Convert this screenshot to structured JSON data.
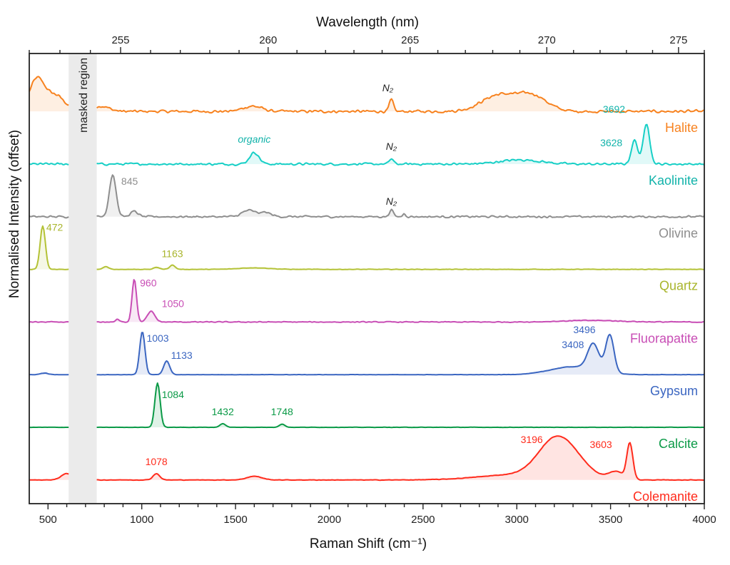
{
  "chart_data": {
    "type": "line",
    "xlabel": "Raman Shift (cm⁻¹)",
    "ylabel": "Normalised Intensity (offset)",
    "top_xlabel": "Wavelength (nm)",
    "xlim": [
      400,
      4000
    ],
    "xticks": [
      500,
      1000,
      1500,
      2000,
      2500,
      3000,
      3500,
      4000
    ],
    "x_minor_step": 100,
    "top_xlim": [
      252,
      276
    ],
    "top_xticks": [
      255,
      260,
      265,
      270,
      275
    ],
    "top_minor_step": 1,
    "top_axis_scale": "reciprocal",
    "ylim": [
      -0.45,
      8.1
    ],
    "grid": false,
    "legend": "none (series labelled at right end)",
    "masked_region": {
      "label": "masked region",
      "range": [
        610,
        760
      ],
      "color": "#ebebeb"
    },
    "series": [
      {
        "name": "Halite",
        "color": "#f7821f",
        "offset": 7,
        "peaks": [
          [
            440,
            0.6,
            40
          ],
          [
            540,
            0.3,
            50
          ],
          [
            780,
            0.1,
            45
          ],
          [
            1590,
            0.1,
            50
          ],
          [
            2331,
            0.22,
            11
          ],
          [
            2900,
            0.3,
            90
          ],
          [
            3080,
            0.3,
            80
          ]
        ]
      },
      {
        "name": "Kaolinite",
        "color": "#17cfc6",
        "label_color": "#12b3aa",
        "offset": 6,
        "peaks": [
          [
            1600,
            0.22,
            25
          ],
          [
            2331,
            0.1,
            11
          ],
          [
            3020,
            0.08,
            110
          ],
          [
            3628,
            0.45,
            17
          ],
          [
            3692,
            0.78,
            17
          ]
        ]
      },
      {
        "name": "Olivine",
        "color": "#8e8e8e",
        "offset": 5,
        "peaks": [
          [
            845,
            0.8,
            18
          ],
          [
            960,
            0.1,
            20
          ],
          [
            1570,
            0.12,
            35
          ],
          [
            1660,
            0.08,
            30
          ],
          [
            2331,
            0.14,
            10
          ],
          [
            2400,
            0.06,
            8
          ]
        ]
      },
      {
        "name": "Quartz",
        "color": "#b4c236",
        "label_color": "#a9b52c",
        "offset": 4,
        "peaks": [
          [
            472,
            0.82,
            14
          ],
          [
            810,
            0.05,
            15
          ],
          [
            1080,
            0.04,
            15
          ],
          [
            1163,
            0.08,
            15
          ],
          [
            1600,
            0.03,
            80
          ]
        ]
      },
      {
        "name": "Fluorapatite",
        "color": "#c84db5",
        "offset": 3,
        "peaks": [
          [
            870,
            0.05,
            10
          ],
          [
            960,
            0.82,
            12
          ],
          [
            1050,
            0.2,
            20
          ],
          [
            3400,
            0.03,
            150
          ]
        ]
      },
      {
        "name": "Gypsum",
        "color": "#3b66c1",
        "offset": 2,
        "peaks": [
          [
            480,
            0.03,
            20
          ],
          [
            1003,
            0.82,
            14
          ],
          [
            1133,
            0.26,
            16
          ],
          [
            3300,
            0.15,
            120
          ],
          [
            3408,
            0.5,
            30
          ],
          [
            3496,
            0.72,
            22
          ]
        ]
      },
      {
        "name": "Calcite",
        "color": "#0b9a47",
        "offset": 1,
        "peaks": [
          [
            1084,
            0.84,
            14
          ],
          [
            1432,
            0.07,
            15
          ],
          [
            1748,
            0.06,
            15
          ]
        ]
      },
      {
        "name": "Colemanite",
        "color": "#ff2b1c",
        "offset": 0,
        "peaks": [
          [
            600,
            0.12,
            30
          ],
          [
            1078,
            0.12,
            18
          ],
          [
            1600,
            0.07,
            40
          ],
          [
            3000,
            0.1,
            200
          ],
          [
            3196,
            0.6,
            90
          ],
          [
            3300,
            0.3,
            90
          ],
          [
            3530,
            0.15,
            40
          ],
          [
            3603,
            0.68,
            16
          ]
        ]
      }
    ],
    "annotations": [
      {
        "series": "Halite",
        "text": "N₂",
        "x": 2331,
        "italic": true
      },
      {
        "series": "Kaolinite",
        "text": "organic",
        "x": 1600,
        "italic": true
      },
      {
        "series": "Kaolinite",
        "text": "N₂",
        "x": 2331,
        "italic": true
      },
      {
        "series": "Kaolinite",
        "text": "3692",
        "x": 3692
      },
      {
        "series": "Kaolinite",
        "text": "3628",
        "x": 3628
      },
      {
        "series": "Olivine",
        "text": "845",
        "x": 845
      },
      {
        "series": "Olivine",
        "text": "N₂",
        "x": 2331,
        "italic": true
      },
      {
        "series": "Quartz",
        "text": "472",
        "x": 472
      },
      {
        "series": "Quartz",
        "text": "1163",
        "x": 1163
      },
      {
        "series": "Fluorapatite",
        "text": "960",
        "x": 960
      },
      {
        "series": "Fluorapatite",
        "text": "1050",
        "x": 1050
      },
      {
        "series": "Gypsum",
        "text": "1003",
        "x": 1003
      },
      {
        "series": "Gypsum",
        "text": "1133",
        "x": 1133
      },
      {
        "series": "Gypsum",
        "text": "3408",
        "x": 3408
      },
      {
        "series": "Gypsum",
        "text": "3496",
        "x": 3496
      },
      {
        "series": "Calcite",
        "text": "1084",
        "x": 1084
      },
      {
        "series": "Calcite",
        "text": "1432",
        "x": 1432
      },
      {
        "series": "Calcite",
        "text": "1748",
        "x": 1748
      },
      {
        "series": "Colemanite",
        "text": "1078",
        "x": 1078
      },
      {
        "series": "Colemanite",
        "text": "3196",
        "x": 3196
      },
      {
        "series": "Colemanite",
        "text": "3603",
        "x": 3603
      }
    ]
  }
}
